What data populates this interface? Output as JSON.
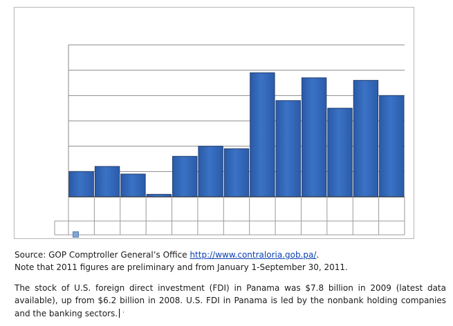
{
  "chart_data": {
    "type": "bar",
    "title": "",
    "xlabel": "",
    "ylabel": "",
    "categories": [
      "",
      "",
      "",
      "",
      "",
      "",
      "",
      "",
      "",
      "",
      "",
      "",
      ""
    ],
    "values": [
      1.0,
      1.2,
      0.9,
      0.1,
      1.6,
      2.0,
      1.9,
      4.9,
      3.8,
      4.7,
      3.5,
      4.6,
      4.0
    ],
    "ylim": [
      0,
      6
    ],
    "grid": true,
    "legend": "data-table",
    "bar_color": "#3b72c5",
    "bar_edge_color": "#233f6f"
  },
  "source": {
    "prefix": "Source: GOP Comptroller General’s Office ",
    "link_text": "http://www.contraloria.gob.pa/",
    "suffix": ".",
    "note": "Note that 2011 figures are preliminary and from January 1-September 30, 2011."
  },
  "body": {
    "paragraph": "The stock of U.S. foreign direct investment (FDI) in Panama was $7.8 billion in 2009 (latest data available), up from $6.2 billion in 2008. U.S. FDI in Panama is led by the nonbank holding companies and the banking sectors.",
    "stray_mark": "·"
  }
}
